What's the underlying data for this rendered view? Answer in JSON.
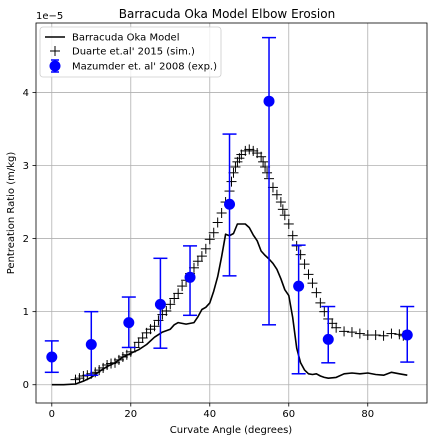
{
  "chart_data": {
    "type": "line",
    "title": "Barracuda Oka Model Elbow Erosion",
    "xlabel": "Curvate Angle (degrees)",
    "ylabel": "Pentreation Ratio (m/kg)",
    "y_offset_text": "1e−5",
    "xlim": [
      -4,
      95
    ],
    "ylim": [
      -0.25,
      4.95
    ],
    "xticks": [
      0,
      20,
      40,
      60,
      80
    ],
    "yticks": [
      0,
      1,
      2,
      3,
      4
    ],
    "grid": true,
    "legend_position": "upper left",
    "series": [
      {
        "name": "Barracuda Oka Model",
        "style": "line",
        "color": "#000000",
        "x": [
          0,
          3,
          6,
          8,
          10,
          12,
          14,
          16,
          18,
          20,
          22,
          24,
          26,
          28,
          30,
          31,
          32,
          34,
          36,
          37,
          38,
          39,
          40,
          41,
          42,
          43,
          44,
          45,
          46,
          47,
          48,
          49,
          50,
          51,
          52,
          53,
          54,
          55,
          56,
          57,
          58,
          59,
          60,
          61,
          62,
          63,
          64,
          65,
          66,
          67,
          68,
          69,
          70,
          72,
          74,
          76,
          78,
          80,
          82,
          84,
          86,
          88,
          90
        ],
        "y": [
          0.0,
          0.0,
          0.01,
          0.05,
          0.1,
          0.18,
          0.25,
          0.3,
          0.38,
          0.43,
          0.48,
          0.55,
          0.65,
          0.72,
          0.76,
          0.82,
          0.85,
          0.83,
          0.85,
          0.93,
          1.03,
          1.06,
          1.12,
          1.28,
          1.48,
          1.75,
          2.06,
          2.04,
          2.07,
          2.2,
          2.2,
          2.2,
          2.15,
          2.05,
          1.97,
          1.83,
          1.77,
          1.72,
          1.66,
          1.58,
          1.45,
          1.3,
          1.22,
          0.92,
          0.5,
          0.3,
          0.2,
          0.15,
          0.14,
          0.15,
          0.12,
          0.1,
          0.09,
          0.1,
          0.15,
          0.16,
          0.15,
          0.16,
          0.14,
          0.13,
          0.17,
          0.15,
          0.13
        ]
      },
      {
        "name": "Duarte et.al' 2015 (sim.)",
        "style": "marker-plus",
        "color": "#000000",
        "x": [
          6,
          7,
          8,
          9,
          10,
          11,
          12,
          13,
          14,
          15,
          16,
          17,
          18,
          19,
          20,
          21,
          22,
          23,
          24,
          25,
          26,
          27,
          28,
          29,
          30,
          31,
          32,
          33,
          34,
          35,
          36,
          37,
          38,
          39,
          40,
          41,
          42,
          43,
          44,
          45,
          45.5,
          46,
          46.5,
          47,
          47.5,
          48,
          49,
          50,
          51,
          52,
          53,
          53.5,
          54,
          54.5,
          55,
          56,
          57,
          58,
          58.5,
          59,
          60,
          61,
          62,
          63,
          64,
          65,
          66,
          67,
          68,
          69,
          70,
          71,
          72,
          74,
          76,
          78,
          80,
          82,
          84,
          86,
          88,
          89,
          90
        ],
        "y": [
          0.07,
          0.09,
          0.12,
          0.13,
          0.15,
          0.17,
          0.2,
          0.23,
          0.27,
          0.29,
          0.3,
          0.34,
          0.38,
          0.41,
          0.45,
          0.51,
          0.58,
          0.64,
          0.71,
          0.76,
          0.8,
          0.88,
          0.96,
          1.01,
          1.1,
          1.18,
          1.25,
          1.35,
          1.43,
          1.52,
          1.6,
          1.69,
          1.76,
          1.86,
          1.99,
          2.08,
          2.22,
          2.35,
          2.5,
          2.65,
          2.78,
          2.9,
          2.98,
          3.05,
          3.1,
          3.15,
          3.2,
          3.22,
          3.2,
          3.17,
          3.12,
          3.05,
          2.98,
          2.9,
          2.82,
          2.7,
          2.6,
          2.5,
          2.4,
          2.32,
          2.2,
          2.04,
          1.9,
          1.78,
          1.65,
          1.51,
          1.39,
          1.26,
          1.12,
          1.0,
          0.9,
          0.84,
          0.78,
          0.73,
          0.72,
          0.7,
          0.68,
          0.68,
          0.67,
          0.7,
          0.69,
          0.67,
          0.68
        ]
      },
      {
        "name": "Mazumder et. al' 2008 (exp.)",
        "style": "marker-errorbar",
        "color": "#0000ff",
        "x": [
          0,
          10,
          19.5,
          27.5,
          35,
          45,
          55,
          62.5,
          70,
          90
        ],
        "y": [
          0.38,
          0.55,
          0.85,
          1.1,
          1.47,
          2.47,
          3.88,
          1.35,
          0.62,
          0.68
        ],
        "yerr_low": [
          0.17,
          0.13,
          0.51,
          0.5,
          0.95,
          1.49,
          0.82,
          0.15,
          0.3,
          0.31
        ],
        "yerr_high": [
          0.6,
          1.0,
          1.2,
          1.73,
          1.9,
          3.43,
          4.75,
          1.91,
          1.07,
          1.07
        ]
      }
    ]
  }
}
